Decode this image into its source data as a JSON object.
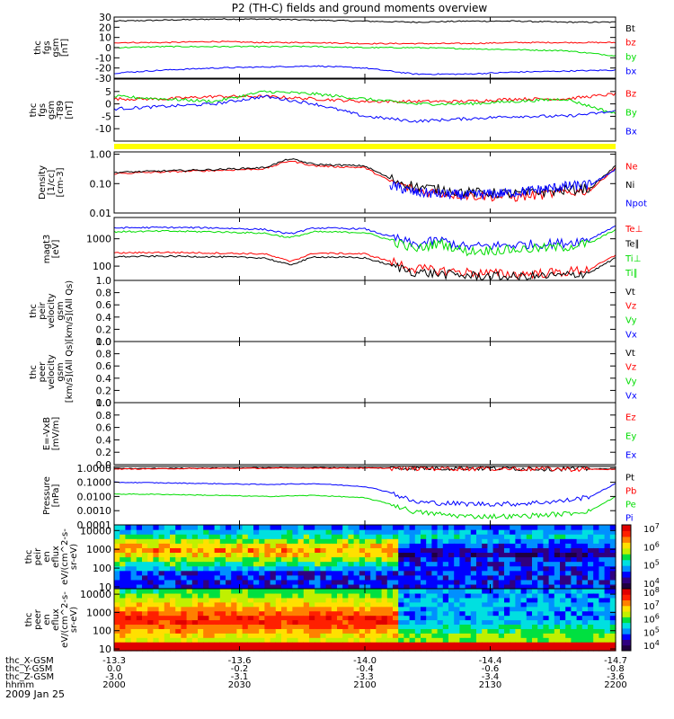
{
  "title": "P2 (TH-C) fields and ground moments overview",
  "date_label": "2009 Jan 25",
  "colors": {
    "black": "#000000",
    "red": "#ff0000",
    "green": "#00dd00",
    "blue": "#0000ff",
    "yellow": "#ffff00"
  },
  "chart_data": [
    {
      "type": "line",
      "name": "fgs-gsm",
      "ylabel": [
        "thc",
        "fgs",
        "gsm",
        "[nT]"
      ],
      "ylim": [
        -30,
        30
      ],
      "yscale": "linear",
      "yticks": [
        -30,
        -20,
        -10,
        0,
        10,
        20,
        30
      ],
      "legend": [
        {
          "text": "Bt",
          "color": "#000000"
        },
        {
          "text": "bz",
          "color": "#ff0000"
        },
        {
          "text": "by",
          "color": "#00dd00"
        },
        {
          "text": "bx",
          "color": "#0000ff"
        }
      ],
      "series": [
        {
          "name": "Bt",
          "color": "#000000",
          "x": [
            0,
            0.1,
            0.2,
            0.3,
            0.4,
            0.5,
            0.6,
            0.7,
            0.8,
            0.9,
            1.0
          ],
          "y": [
            26,
            27,
            28,
            28,
            27,
            26,
            25,
            26,
            26,
            25,
            25
          ]
        },
        {
          "name": "bz",
          "color": "#ff0000",
          "x": [
            0,
            0.1,
            0.2,
            0.3,
            0.4,
            0.5,
            0.6,
            0.7,
            0.8,
            0.9,
            1.0
          ],
          "y": [
            5,
            5,
            6,
            5,
            5,
            4,
            4,
            4,
            5,
            5,
            5
          ]
        },
        {
          "name": "by",
          "color": "#00dd00",
          "x": [
            0,
            0.1,
            0.2,
            0.3,
            0.4,
            0.5,
            0.6,
            0.7,
            0.8,
            0.9,
            1.0
          ],
          "y": [
            0,
            1,
            1,
            1,
            1,
            0,
            0,
            -1,
            -2,
            -3,
            -8
          ]
        },
        {
          "name": "bx",
          "color": "#0000ff",
          "x": [
            0,
            0.1,
            0.2,
            0.3,
            0.4,
            0.5,
            0.6,
            0.7,
            0.8,
            0.9,
            1.0
          ],
          "y": [
            -25,
            -22,
            -20,
            -19,
            -18,
            -20,
            -26,
            -26,
            -24,
            -23,
            -22
          ]
        }
      ]
    },
    {
      "type": "line",
      "name": "fgs-gse",
      "ylabel": [
        "thc",
        "fgs",
        "gsm",
        "-T89",
        "[nT]"
      ],
      "ylim": [
        -15,
        10
      ],
      "yscale": "linear",
      "yticks": [
        -10,
        -5,
        0,
        5
      ],
      "legend": [
        {
          "text": "Bz",
          "color": "#ff0000"
        },
        {
          "text": "By",
          "color": "#00dd00"
        },
        {
          "text": "Bx",
          "color": "#0000ff"
        }
      ],
      "series": [
        {
          "name": "Bz",
          "color": "#ff0000",
          "x": [
            0,
            0.1,
            0.2,
            0.3,
            0.4,
            0.5,
            0.6,
            0.7,
            0.8,
            0.9,
            1.0
          ],
          "y": [
            2,
            2,
            3,
            3,
            2,
            1,
            1,
            1,
            2,
            2,
            4
          ]
        },
        {
          "name": "By",
          "color": "#00dd00",
          "x": [
            0,
            0.1,
            0.2,
            0.3,
            0.4,
            0.5,
            0.6,
            0.7,
            0.8,
            0.9,
            1.0
          ],
          "y": [
            3,
            2,
            1,
            5,
            4,
            2,
            0,
            0,
            1,
            2,
            -4
          ]
        },
        {
          "name": "Bx",
          "color": "#0000ff",
          "x": [
            0,
            0.1,
            0.2,
            0.3,
            0.4,
            0.5,
            0.6,
            0.7,
            0.8,
            0.9,
            1.0
          ],
          "y": [
            -2,
            -1,
            0,
            3,
            0,
            -5,
            -7,
            -6,
            -5,
            -5,
            -3
          ]
        }
      ]
    },
    {
      "type": "line",
      "name": "density",
      "ylabel": [
        "Density",
        "[1/cc]",
        "[cm-3]"
      ],
      "ylim": [
        0.01,
        1.2
      ],
      "yscale": "log",
      "ytick_labels": [
        {
          "v": 0.01,
          "t": "0.01"
        },
        {
          "v": 0.1,
          "t": "0.10"
        },
        {
          "v": 1.0,
          "t": "1.00"
        }
      ],
      "legend": [
        {
          "text": "Ne",
          "color": "#ff0000"
        },
        {
          "text": "Ni",
          "color": "#000000"
        },
        {
          "text": "Npot",
          "color": "#0000ff"
        }
      ],
      "series": [
        {
          "name": "Ne",
          "color": "#ff0000",
          "x": [
            0,
            0.1,
            0.2,
            0.3,
            0.35,
            0.4,
            0.5,
            0.55,
            0.6,
            0.7,
            0.8,
            0.9,
            0.95,
            1.0
          ],
          "y": [
            0.22,
            0.25,
            0.28,
            0.32,
            0.6,
            0.4,
            0.35,
            0.12,
            0.06,
            0.04,
            0.035,
            0.05,
            0.06,
            0.35
          ]
        },
        {
          "name": "Ni",
          "color": "#000000",
          "x": [
            0,
            0.1,
            0.2,
            0.3,
            0.35,
            0.4,
            0.5,
            0.55,
            0.6,
            0.7,
            0.8,
            0.9,
            0.95,
            1.0
          ],
          "y": [
            0.24,
            0.27,
            0.3,
            0.35,
            0.7,
            0.45,
            0.4,
            0.15,
            0.08,
            0.05,
            0.045,
            0.06,
            0.07,
            0.4
          ]
        },
        {
          "name": "Npot",
          "color": "#0000ff",
          "x": [
            0.55,
            0.6,
            0.7,
            0.8,
            0.9,
            0.95,
            1.0
          ],
          "y": [
            0.09,
            0.05,
            0.04,
            0.05,
            0.08,
            0.09,
            0.3
          ]
        }
      ]
    },
    {
      "type": "line",
      "name": "temperature",
      "ylabel": [
        "magt3",
        "[eV]"
      ],
      "ylim": [
        30,
        6000
      ],
      "yscale": "log",
      "ytick_labels": [
        {
          "v": 100,
          "t": "100"
        },
        {
          "v": 1000,
          "t": "1000"
        }
      ],
      "legend": [
        {
          "text": "Te⊥",
          "color": "#ff0000"
        },
        {
          "text": "Te∥",
          "color": "#000000"
        },
        {
          "text": "Ti⊥",
          "color": "#00dd00"
        },
        {
          "text": "Ti∥",
          "color": "#00dd00"
        }
      ],
      "series": [
        {
          "name": "Ti⊥",
          "color": "#0000ff",
          "x": [
            0,
            0.1,
            0.2,
            0.3,
            0.35,
            0.4,
            0.5,
            0.55,
            0.6,
            0.65,
            0.7,
            0.8,
            0.9,
            0.95,
            1.0
          ],
          "y": [
            2500,
            2600,
            2500,
            2200,
            1500,
            2500,
            2300,
            1200,
            600,
            900,
            500,
            600,
            700,
            1000,
            3000
          ]
        },
        {
          "name": "Ti∥",
          "color": "#00dd00",
          "x": [
            0,
            0.1,
            0.2,
            0.3,
            0.35,
            0.4,
            0.5,
            0.55,
            0.6,
            0.65,
            0.7,
            0.8,
            0.9,
            0.95,
            1.0
          ],
          "y": [
            1800,
            1900,
            1800,
            1600,
            1100,
            1800,
            1700,
            900,
            400,
            700,
            350,
            400,
            500,
            700,
            2200
          ]
        },
        {
          "name": "Te⊥",
          "color": "#ff0000",
          "x": [
            0,
            0.1,
            0.2,
            0.3,
            0.35,
            0.4,
            0.5,
            0.55,
            0.6,
            0.7,
            0.8,
            0.9,
            0.95,
            1.0
          ],
          "y": [
            300,
            320,
            300,
            280,
            150,
            300,
            280,
            150,
            80,
            60,
            50,
            60,
            80,
            250
          ]
        },
        {
          "name": "Te∥",
          "color": "#000000",
          "x": [
            0,
            0.1,
            0.2,
            0.3,
            0.35,
            0.4,
            0.5,
            0.55,
            0.6,
            0.7,
            0.8,
            0.9,
            0.95,
            1.0
          ],
          "y": [
            220,
            230,
            220,
            200,
            110,
            220,
            200,
            110,
            60,
            45,
            40,
            45,
            60,
            200
          ]
        }
      ]
    },
    {
      "type": "line",
      "name": "peir-velocity",
      "ylabel": [
        "thc",
        "peir",
        "velocity",
        "gsm",
        "[km/s](All Qs)"
      ],
      "ylim": [
        0,
        1
      ],
      "yscale": "linear",
      "ytick_labels": [
        {
          "v": 0.0,
          "t": "0.0"
        },
        {
          "v": 0.2,
          "t": "0.2"
        },
        {
          "v": 0.4,
          "t": "0.4"
        },
        {
          "v": 0.6,
          "t": "0.6"
        },
        {
          "v": 0.8,
          "t": "0.8"
        },
        {
          "v": 1.0,
          "t": "1.0"
        }
      ],
      "legend": [
        {
          "text": "Vt",
          "color": "#000000"
        },
        {
          "text": "Vz",
          "color": "#ff0000"
        },
        {
          "text": "Vy",
          "color": "#00dd00"
        },
        {
          "text": "Vx",
          "color": "#0000ff"
        }
      ],
      "series": []
    },
    {
      "type": "line",
      "name": "peer-velocity",
      "ylabel": [
        "thc",
        "peer",
        "velocity",
        "gsm",
        "[km/s](All Qs)"
      ],
      "ylim": [
        0,
        1
      ],
      "yscale": "linear",
      "ytick_labels": [
        {
          "v": 0.0,
          "t": "0.0"
        },
        {
          "v": 0.2,
          "t": "0.2"
        },
        {
          "v": 0.4,
          "t": "0.4"
        },
        {
          "v": 0.6,
          "t": "0.6"
        },
        {
          "v": 0.8,
          "t": "0.8"
        },
        {
          "v": 1.0,
          "t": "1.0"
        }
      ],
      "legend": [
        {
          "text": "Vt",
          "color": "#000000"
        },
        {
          "text": "Vz",
          "color": "#ff0000"
        },
        {
          "text": "Vy",
          "color": "#00dd00"
        },
        {
          "text": "Vx",
          "color": "#0000ff"
        }
      ],
      "series": []
    },
    {
      "type": "line",
      "name": "e-vxb",
      "ylabel": [
        "E=-VxB",
        "[mV/m]"
      ],
      "ylim": [
        0,
        1
      ],
      "yscale": "linear",
      "ytick_labels": [
        {
          "v": 0.0,
          "t": "0.0"
        },
        {
          "v": 0.2,
          "t": "0.2"
        },
        {
          "v": 0.4,
          "t": "0.4"
        },
        {
          "v": 0.6,
          "t": "0.6"
        },
        {
          "v": 0.8,
          "t": "0.8"
        },
        {
          "v": 1.0,
          "t": "1.0"
        }
      ],
      "legend": [
        {
          "text": "Ez",
          "color": "#ff0000"
        },
        {
          "text": "Ey",
          "color": "#00dd00"
        },
        {
          "text": "Ex",
          "color": "#0000ff"
        }
      ],
      "series": []
    },
    {
      "type": "line",
      "name": "pressure",
      "ylabel": [
        "Pressure",
        "[nPa]"
      ],
      "ylim": [
        0.0001,
        1.3
      ],
      "yscale": "log",
      "ytick_labels": [
        {
          "v": 0.0001,
          "t": "0.0001"
        },
        {
          "v": 0.001,
          "t": "0.0010"
        },
        {
          "v": 0.01,
          "t": "0.0100"
        },
        {
          "v": 0.1,
          "t": "0.1000"
        },
        {
          "v": 1.0,
          "t": "1.0000"
        }
      ],
      "legend": [
        {
          "text": "Pt",
          "color": "#000000"
        },
        {
          "text": "Pb",
          "color": "#ff0000"
        },
        {
          "text": "Pe",
          "color": "#00dd00"
        },
        {
          "text": "Pi",
          "color": "#0000ff"
        }
      ],
      "series": [
        {
          "name": "Pt",
          "color": "#000000",
          "x": [
            0,
            0.2,
            0.4,
            0.6,
            0.8,
            1.0
          ],
          "y": [
            0.9,
            1.0,
            1.05,
            1.0,
            0.95,
            0.85
          ]
        },
        {
          "name": "Pb",
          "color": "#ff0000",
          "x": [
            0,
            0.2,
            0.4,
            0.6,
            0.8,
            1.0
          ],
          "y": [
            0.85,
            0.95,
            1.0,
            0.98,
            0.92,
            0.8
          ]
        },
        {
          "name": "Pi",
          "color": "#0000ff",
          "x": [
            0,
            0.1,
            0.2,
            0.3,
            0.4,
            0.5,
            0.55,
            0.6,
            0.7,
            0.8,
            0.9,
            0.95,
            1.0
          ],
          "y": [
            0.1,
            0.09,
            0.08,
            0.07,
            0.08,
            0.05,
            0.02,
            0.004,
            0.003,
            0.003,
            0.005,
            0.01,
            0.08
          ]
        },
        {
          "name": "Pe",
          "color": "#00dd00",
          "x": [
            0,
            0.1,
            0.2,
            0.3,
            0.4,
            0.5,
            0.55,
            0.6,
            0.7,
            0.8,
            0.9,
            0.95,
            1.0
          ],
          "y": [
            0.015,
            0.014,
            0.012,
            0.01,
            0.012,
            0.008,
            0.003,
            0.0008,
            0.0004,
            0.0004,
            0.0006,
            0.001,
            0.01
          ]
        }
      ]
    },
    {
      "type": "heatmap",
      "name": "peir-en-eflux",
      "ylabel": [
        "thc",
        "peir",
        "en",
        "eflux",
        "eV/(cm^2-s-",
        "sr-eV)"
      ],
      "ylim": [
        8,
        20000
      ],
      "yscale": "log",
      "ytick_labels": [
        {
          "v": 10,
          "t": "10"
        },
        {
          "v": 100,
          "t": "100"
        },
        {
          "v": 1000,
          "t": "1000"
        },
        {
          "v": 10000,
          "t": "10000"
        }
      ],
      "colorbar": [
        "10^4",
        "10^5",
        "10^6",
        "10^7"
      ]
    },
    {
      "type": "heatmap",
      "name": "peer-en-eflux",
      "ylabel": [
        "thc",
        "peer",
        "en",
        "eflux",
        "eV/(cm^2-s-",
        "sr-eV)"
      ],
      "ylim": [
        8,
        20000
      ],
      "yscale": "log",
      "ytick_labels": [
        {
          "v": 10,
          "t": "10"
        },
        {
          "v": 100,
          "t": "100"
        },
        {
          "v": 1000,
          "t": "1000"
        },
        {
          "v": 10000,
          "t": "10000"
        }
      ],
      "colorbar": [
        "10^4",
        "10^5",
        "10^6",
        "10^7",
        "10^8"
      ]
    }
  ],
  "xaxis": {
    "rows": [
      {
        "label": "thc_X-GSM",
        "values": [
          "-13.3",
          "-13.6",
          "-14.0",
          "-14.4",
          "-14.7"
        ]
      },
      {
        "label": "thc_Y-GSM",
        "values": [
          "0.0",
          "-0.2",
          "-0.4",
          "-0.6",
          "-0.8"
        ]
      },
      {
        "label": "thc_Z-GSM",
        "values": [
          "-3.0",
          "-3.1",
          "-3.3",
          "-3.4",
          "-3.6"
        ]
      },
      {
        "label": "hhmm",
        "values": [
          "2000",
          "2030",
          "2100",
          "2130",
          "2200"
        ]
      }
    ]
  }
}
